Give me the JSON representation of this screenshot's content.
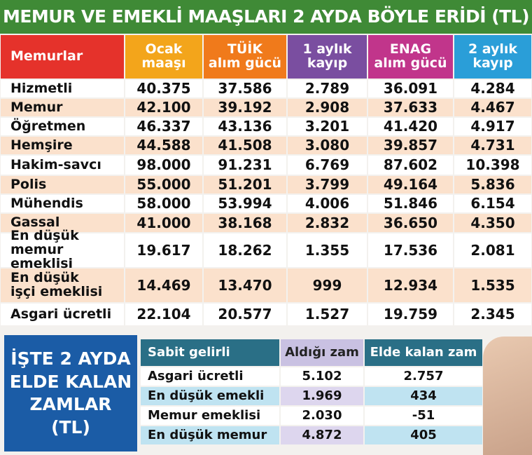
{
  "title": "MEMUR VE EMEKLİ MAAŞLARI 2 AYDA BÖYLE ERİDİ (TL)",
  "table": {
    "header": [
      "Memurlar",
      "Ocak\nmaaşı",
      "TÜİK\nalım gücü",
      "1 aylık\nkayıp",
      "ENAG\nalım gücü",
      "2 aylık\nkayıp"
    ],
    "rows": [
      [
        "Hizmetli",
        "40.375",
        "37.586",
        "2.789",
        "36.091",
        "4.284"
      ],
      [
        "Memur",
        "42.100",
        "39.192",
        "2.908",
        "37.633",
        "4.467"
      ],
      [
        "Öğretmen",
        "46.337",
        "43.136",
        "3.201",
        "41.420",
        "4.917"
      ],
      [
        "Hemşire",
        "44.588",
        "41.508",
        "3.080",
        "39.857",
        "4.731"
      ],
      [
        "Hakim-savcı",
        "98.000",
        "91.231",
        "6.769",
        "87.602",
        "10.398"
      ],
      [
        "Polis",
        "55.000",
        "51.201",
        "3.799",
        "49.164",
        "5.836"
      ],
      [
        "Mühendis",
        "58.000",
        "53.994",
        "4.006",
        "51.846",
        "6.154"
      ],
      [
        "Gassal",
        "41.000",
        "38.168",
        "2.832",
        "36.650",
        "4.350"
      ],
      [
        "En düşük\nmemur emeklisi",
        "19.617",
        "18.262",
        "1.355",
        "17.536",
        "2.081"
      ],
      [
        "En düşük\nişçi emeklisi",
        "14.469",
        "13.470",
        "999",
        "12.934",
        "1.535"
      ],
      [
        "Asgari ücretli",
        "22.104",
        "20.577",
        "1.527",
        "19.759",
        "2.345"
      ]
    ]
  },
  "panel": {
    "text": "İŞTE 2 AYDA\nELDE KALAN\nZAMLAR\n(TL)"
  },
  "table2": {
    "header": [
      "Sabit gelirli",
      "Aldığı zam",
      "Elde kalan zam"
    ],
    "rows": [
      [
        "Asgari ücretli",
        "5.102",
        "2.757"
      ],
      [
        "En düşük emekli",
        "1.969",
        "434"
      ],
      [
        "Memur emeklisi",
        "2.030",
        "-51"
      ],
      [
        "En düşük memur",
        "4.872",
        "405"
      ]
    ]
  }
}
